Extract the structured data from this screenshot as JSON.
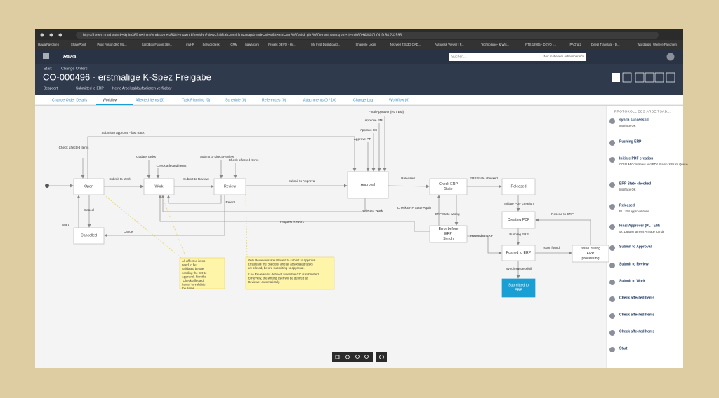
{
  "browser": {
    "url": "https://hawa.cloud.autodeskplm360.net/plm/workspaces/84/items/workflowMap?view=full&tab=workflow-map&mode=view&itemId=urn%60adsk.plm%60tenant.workspace.item%60HAWACLOUD.84.232598",
    "bookmarks": [
      "Hawa Favoriten",
      "SharePoint",
      "Prod Fusion 360 Ma...",
      "SandBox Fusion 360...",
      "myHR",
      "ServiceDesk",
      "CRM",
      "hawa.com",
      "Projekt DEVO - Ho...",
      "My First Dashboard...",
      "Sharefile Login",
      "Nexwell ZIS/3D CAD...",
      "Autodesk Viewer | F...",
      "Technologie- & Wis...",
      "PTS 12905 - DEVO -...",
      "PAOrg 2",
      "Deepl Translate - D...",
      "Wordgrips",
      "Weitere Favoriten"
    ]
  },
  "app": {
    "logo": "Hawa",
    "search_placeholder": "Suchen...",
    "search_scope": "Nur in diesem Arbeitsbereich"
  },
  "header": {
    "breadcrumb": [
      "Start",
      "Change Orders"
    ],
    "title": "CO-000496 - erstmalige K-Spez Freigabe",
    "meta": [
      "Bespoert",
      "Submitted to ERP",
      "Keine Arbeitsablaufaktionen verfügbar"
    ]
  },
  "tabs": [
    "Change Order Details",
    "Workflow",
    "Affected Items (3)",
    "Task Planning (0)",
    "Schedule (0)",
    "References (0)",
    "Attachments (0 / 10)",
    "Change Log",
    "Workflow (0)"
  ],
  "nodes": [
    {
      "label": "Open"
    },
    {
      "label": "Work"
    },
    {
      "label": "Review"
    },
    {
      "label": "Approval"
    },
    {
      "label": "Check ERP State"
    },
    {
      "label": "Released"
    },
    {
      "label": "Cancelled"
    },
    {
      "label": "Error before ERP Synch"
    },
    {
      "label": "Creating PDF"
    },
    {
      "label": "Pushed to ERP"
    },
    {
      "label": "Issue during ERP processing"
    },
    {
      "label": "Submitted to ERP"
    }
  ],
  "edge_labels": [
    "Submit to approval - fast track",
    "Check affected items",
    "Update Tasks",
    "Check affected items",
    "Submit to direct Review",
    "Check affected items",
    "Submit to Work",
    "Submit to Review",
    "Submit to Approval",
    "Final Approver (PL / EM)",
    "Approve PM",
    "Approve ES",
    "Approve PT",
    "Released",
    "ERP State checked",
    "Cancel",
    "Reject",
    "Reject to Work",
    "Check ERP State Again",
    "ERP State wrong",
    "Start",
    "Cancel",
    "Request Rework",
    "Initiate PDF creation",
    "Resend to ERP",
    "Pushing ERP",
    "Resend to ERP",
    "Issue found",
    "synch successfull"
  ],
  "notes": [
    [
      "All affected items need to be validated before sending the CO to Approval. Run the \"Check affected Items\" to validate the items."
    ],
    [
      "Only Reviewers are allowed to submit to approval. Ensure all the checklist and all associated tasks are closed, before submitting to approval.",
      "If no Reviewer is defined, when the CO is submitted to Review, the writing user will be defined as Reviewer automatically."
    ]
  ],
  "history": {
    "title": "PROTOKOLL DES ARBEITSAB...",
    "items": [
      {
        "action": "synch successfull",
        "comment": "Interface OK"
      },
      {
        "action": "Pushing ERP"
      },
      {
        "action": "Initiate PDF creation",
        "comment": "CO PLM Completed and PDF Stamp Jobs im Queue"
      },
      {
        "action": "ERP State checked",
        "comment": "Interface OK"
      },
      {
        "action": "Released",
        "comment": "PL / EM approval done"
      },
      {
        "action": "Final Approver (PL / EM)",
        "comment": "ok, Langen jamens Anfrage Kunde"
      },
      {
        "action": "Submit to Approval"
      },
      {
        "action": "Submit to Review"
      },
      {
        "action": "Submit to Work"
      },
      {
        "action": "Check affected Items"
      },
      {
        "action": "Check affected Items"
      },
      {
        "action": "Check affected Items"
      },
      {
        "action": "Start"
      }
    ]
  }
}
